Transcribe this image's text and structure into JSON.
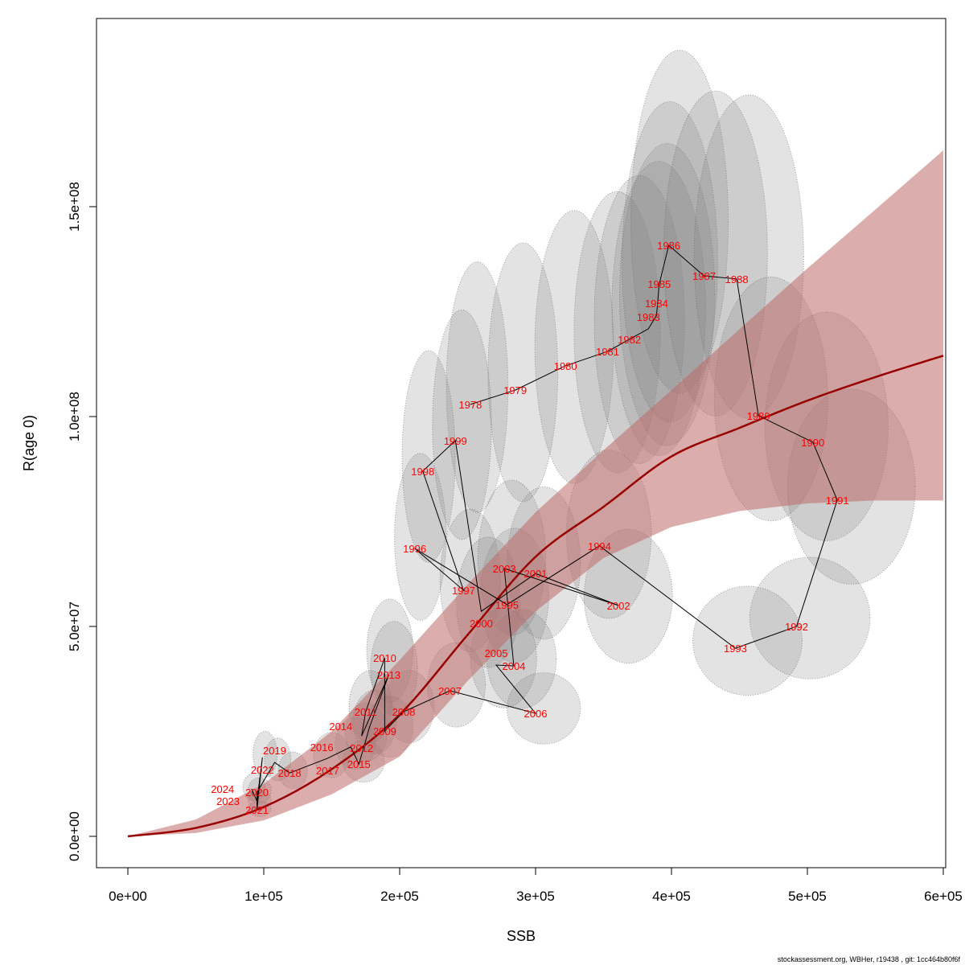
{
  "chart_data": {
    "type": "scatter",
    "title": "",
    "xlabel": "SSB",
    "ylabel": "R(age 0)",
    "xlim": [
      0,
      600000
    ],
    "ylim": [
      0,
      180000000
    ],
    "x_ticks": [
      0,
      100000,
      200000,
      300000,
      400000,
      500000,
      600000
    ],
    "x_tick_labels": [
      "0e+00",
      "1e+05",
      "2e+05",
      "3e+05",
      "4e+05",
      "5e+05",
      "6e+05"
    ],
    "y_ticks": [
      0,
      50000000,
      100000000,
      150000000
    ],
    "y_tick_labels": [
      "0.0e+00",
      "5.0e+07",
      "1.0e+08",
      "1.5e+08"
    ],
    "grid": false,
    "colors": {
      "points": "#ff0000",
      "curve": "#990000",
      "band": "#c06a6a",
      "ellipse": "#808080",
      "path": "#000000"
    },
    "points": [
      {
        "year": "1978",
        "ssb": 252000,
        "rec": 102900000
      },
      {
        "year": "1979",
        "ssb": 285000,
        "rec": 106300000
      },
      {
        "year": "1980",
        "ssb": 322000,
        "rec": 112100000
      },
      {
        "year": "1981",
        "ssb": 353000,
        "rec": 115500000
      },
      {
        "year": "1982",
        "ssb": 369000,
        "rec": 118400000
      },
      {
        "year": "1983",
        "ssb": 383000,
        "rec": 120900000
      },
      {
        "year": "1984",
        "ssb": 389000,
        "rec": 124100000
      },
      {
        "year": "1985",
        "ssb": 391000,
        "rec": 131600000
      },
      {
        "year": "1986",
        "ssb": 398000,
        "rec": 140800000
      },
      {
        "year": "1987",
        "ssb": 424000,
        "rec": 133500000
      },
      {
        "year": "1988",
        "ssb": 448000,
        "rec": 132800000
      },
      {
        "year": "1989",
        "ssb": 464000,
        "rec": 100200000
      },
      {
        "year": "1990",
        "ssb": 504000,
        "rec": 93900000
      },
      {
        "year": "1991",
        "ssb": 522000,
        "rec": 80100000
      },
      {
        "year": "1992",
        "ssb": 492000,
        "rec": 50000000
      },
      {
        "year": "1993",
        "ssb": 447000,
        "rec": 44800000
      },
      {
        "year": "1994",
        "ssb": 347000,
        "rec": 69200000
      },
      {
        "year": "1995",
        "ssb": 279000,
        "rec": 55200000
      },
      {
        "year": "1996",
        "ssb": 211000,
        "rec": 68600000
      },
      {
        "year": "1997",
        "ssb": 247000,
        "rec": 58600000
      },
      {
        "year": "1998",
        "ssb": 217000,
        "rec": 87000000
      },
      {
        "year": "1999",
        "ssb": 241000,
        "rec": 94300000
      },
      {
        "year": "2000",
        "ssb": 260000,
        "rec": 53600000
      },
      {
        "year": "2001",
        "ssb": 300000,
        "rec": 62600000
      },
      {
        "year": "2002",
        "ssb": 361000,
        "rec": 55000000
      },
      {
        "year": "2003",
        "ssb": 277000,
        "rec": 63800000
      },
      {
        "year": "2004",
        "ssb": 284000,
        "rec": 40600000
      },
      {
        "year": "2005",
        "ssb": 271000,
        "rec": 40800000
      },
      {
        "year": "2006",
        "ssb": 300000,
        "rec": 29300000
      },
      {
        "year": "2007",
        "ssb": 237000,
        "rec": 34700000
      },
      {
        "year": "2008",
        "ssb": 203000,
        "rec": 29700000
      },
      {
        "year": "2009",
        "ssb": 189000,
        "rec": 25100000
      },
      {
        "year": "2010",
        "ssb": 189000,
        "rec": 42500000
      },
      {
        "year": "2011",
        "ssb": 175000,
        "rec": 29700000
      },
      {
        "year": "2012",
        "ssb": 172000,
        "rec": 23900000
      },
      {
        "year": "2013",
        "ssb": 192000,
        "rec": 38500000
      },
      {
        "year": "2014",
        "ssb": 178000,
        "rec": 26200000
      },
      {
        "year": "2015",
        "ssb": 170000,
        "rec": 17200000
      },
      {
        "year": "2016",
        "ssb": 164000,
        "rec": 21300000
      },
      {
        "year": "2017",
        "ssb": 147000,
        "rec": 18600000
      },
      {
        "year": "2018",
        "ssb": 119000,
        "rec": 15100000
      },
      {
        "year": "2019",
        "ssb": 108000,
        "rec": 17600000
      },
      {
        "year": "2020",
        "ssb": 95000,
        "rec": 10500000
      },
      {
        "year": "2021",
        "ssb": 95000,
        "rec": 6300000
      },
      {
        "year": "2022",
        "ssb": 99000,
        "rec": 18800000
      },
      {
        "year": "2023",
        "ssb": 95000,
        "rec": 8400000
      },
      {
        "year": "2024",
        "ssb": 91000,
        "rec": 11300000
      }
    ],
    "fit": {
      "ssb": [
        0,
        50000,
        100000,
        150000,
        200000,
        250000,
        300000,
        350000,
        400000,
        450000,
        500000,
        550000,
        600000
      ],
      "rec": [
        0,
        2000000,
        7000000,
        16000000,
        29000000,
        48000000,
        66600000,
        78500000,
        90500000,
        97300000,
        103800000,
        109400000,
        114500000
      ],
      "lower": [
        0,
        800000,
        3800000,
        10000000,
        19000000,
        37000000,
        53600000,
        66300000,
        73700000,
        77500000,
        79300000,
        80000000,
        80000000
      ],
      "upper": [
        0,
        4000000,
        12500000,
        25000000,
        42000000,
        60000000,
        77200000,
        92000000,
        106300000,
        120800000,
        135300000,
        149300000,
        163400000
      ]
    }
  },
  "footer": "stockassessment.org, WBHer, r19438 , git: 1cc464b80f6f"
}
